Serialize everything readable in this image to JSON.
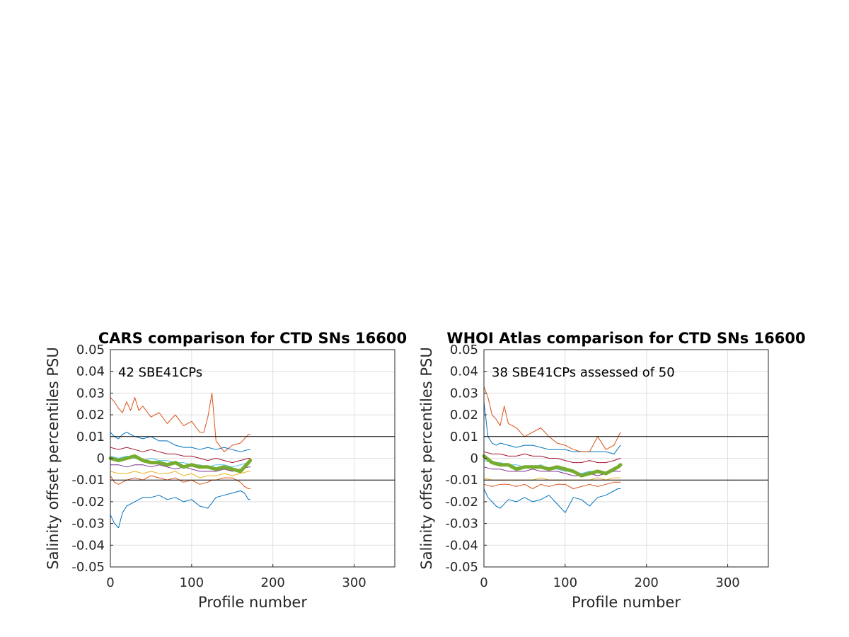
{
  "chart_data": [
    {
      "type": "line",
      "title": "CARS comparison for CTD SNs 16600",
      "xlabel": "Profile number",
      "ylabel": "Salinity offset percentiles PSU",
      "annotation": "42 SBE41CPs",
      "xlim": [
        0,
        350
      ],
      "ylim": [
        -0.05,
        0.05
      ],
      "xticks": [
        "0",
        "100",
        "200",
        "300"
      ],
      "yticks": [
        "0.05",
        "0.04",
        "0.03",
        "0.02",
        "0.01",
        "0",
        "-0.01",
        "-0.02",
        "-0.03",
        "-0.04",
        "-0.05"
      ],
      "grid": true,
      "reference_lines": [
        0.01,
        -0.01
      ],
      "series": [
        {
          "color": "#0072BD",
          "x": [
            0,
            5,
            10,
            15,
            20,
            30,
            40,
            50,
            60,
            70,
            80,
            90,
            100,
            110,
            120,
            130,
            140,
            150,
            160,
            165,
            170,
            172
          ],
          "y": [
            -0.026,
            -0.03,
            -0.032,
            -0.025,
            -0.022,
            -0.02,
            -0.018,
            -0.018,
            -0.017,
            -0.019,
            -0.018,
            -0.02,
            -0.019,
            -0.022,
            -0.023,
            -0.018,
            -0.017,
            -0.016,
            -0.015,
            -0.016,
            -0.019,
            -0.019
          ]
        },
        {
          "color": "#D95319",
          "x": [
            0,
            5,
            10,
            15,
            20,
            30,
            40,
            50,
            60,
            70,
            80,
            90,
            100,
            110,
            120,
            125,
            130,
            140,
            150,
            160,
            165,
            170,
            172
          ],
          "y": [
            -0.008,
            -0.011,
            -0.012,
            -0.011,
            -0.01,
            -0.009,
            -0.01,
            -0.008,
            -0.009,
            -0.01,
            -0.009,
            -0.011,
            -0.01,
            -0.012,
            -0.011,
            -0.01,
            -0.01,
            -0.009,
            -0.009,
            -0.011,
            -0.013,
            -0.014,
            -0.014
          ]
        },
        {
          "color": "#EDB120",
          "x": [
            0,
            10,
            20,
            30,
            40,
            50,
            60,
            70,
            80,
            90,
            100,
            110,
            120,
            130,
            140,
            150,
            160,
            170,
            172
          ],
          "y": [
            -0.006,
            -0.007,
            -0.007,
            -0.006,
            -0.007,
            -0.006,
            -0.007,
            -0.007,
            -0.006,
            -0.008,
            -0.007,
            -0.009,
            -0.008,
            -0.008,
            -0.007,
            -0.008,
            -0.007,
            -0.006,
            -0.006
          ]
        },
        {
          "color": "#7E2F8E",
          "x": [
            0,
            10,
            20,
            30,
            40,
            50,
            60,
            70,
            80,
            90,
            100,
            110,
            120,
            130,
            140,
            150,
            160,
            170,
            172
          ],
          "y": [
            -0.003,
            -0.003,
            -0.004,
            -0.003,
            -0.003,
            -0.004,
            -0.003,
            -0.004,
            -0.005,
            -0.004,
            -0.005,
            -0.006,
            -0.006,
            -0.006,
            -0.005,
            -0.006,
            -0.005,
            -0.004,
            -0.004
          ]
        },
        {
          "color": "#4DBEEE",
          "x": [
            0,
            10,
            20,
            30,
            40,
            50,
            60,
            70,
            80,
            90,
            100,
            110,
            120,
            130,
            140,
            150,
            160,
            170,
            172
          ],
          "y": [
            0.001,
            0.0,
            0.001,
            0.0,
            -0.001,
            0.0,
            -0.001,
            -0.001,
            -0.002,
            -0.002,
            -0.003,
            -0.003,
            -0.004,
            -0.003,
            -0.003,
            -0.004,
            -0.003,
            -0.002,
            -0.002
          ]
        },
        {
          "color": "#A2142F",
          "x": [
            0,
            10,
            20,
            30,
            40,
            50,
            60,
            70,
            80,
            90,
            100,
            110,
            120,
            130,
            140,
            150,
            160,
            170,
            172
          ],
          "y": [
            0.005,
            0.004,
            0.005,
            0.004,
            0.003,
            0.004,
            0.003,
            0.002,
            0.002,
            0.001,
            0.001,
            0.0,
            -0.001,
            0.0,
            -0.001,
            -0.002,
            -0.001,
            0.0,
            0.0
          ]
        },
        {
          "color": "#0072BD",
          "x": [
            0,
            5,
            10,
            15,
            20,
            30,
            40,
            50,
            60,
            70,
            80,
            90,
            100,
            110,
            120,
            130,
            140,
            150,
            160,
            170,
            172
          ],
          "y": [
            0.012,
            0.01,
            0.009,
            0.011,
            0.012,
            0.01,
            0.009,
            0.01,
            0.008,
            0.008,
            0.006,
            0.005,
            0.005,
            0.004,
            0.005,
            0.004,
            0.005,
            0.004,
            0.003,
            0.004,
            0.004
          ]
        },
        {
          "color": "#D95319",
          "x": [
            0,
            5,
            10,
            15,
            20,
            25,
            30,
            35,
            40,
            50,
            60,
            70,
            80,
            90,
            100,
            110,
            115,
            120,
            125,
            130,
            140,
            150,
            160,
            170,
            172
          ],
          "y": [
            0.028,
            0.026,
            0.023,
            0.021,
            0.026,
            0.022,
            0.028,
            0.022,
            0.024,
            0.019,
            0.021,
            0.016,
            0.02,
            0.015,
            0.017,
            0.012,
            0.012,
            0.019,
            0.03,
            0.008,
            0.003,
            0.006,
            0.007,
            0.011,
            0.011
          ]
        },
        {
          "color": "#77AC30",
          "width": 5,
          "x": [
            0,
            10,
            20,
            30,
            40,
            50,
            60,
            70,
            80,
            90,
            100,
            110,
            120,
            130,
            140,
            150,
            160,
            165,
            170,
            172
          ],
          "y": [
            0.0,
            -0.001,
            0.0,
            0.001,
            -0.001,
            -0.002,
            -0.002,
            -0.003,
            -0.002,
            -0.004,
            -0.003,
            -0.004,
            -0.004,
            -0.005,
            -0.004,
            -0.005,
            -0.006,
            -0.004,
            -0.002,
            -0.001
          ]
        }
      ]
    },
    {
      "type": "line",
      "title": "WHOI Atlas comparison for CTD SNs 16600",
      "xlabel": "Profile number",
      "ylabel": "Salinity offset percentiles PSU",
      "annotation": "38 SBE41CPs assessed of 50",
      "xlim": [
        0,
        350
      ],
      "ylim": [
        -0.05,
        0.05
      ],
      "xticks": [
        "0",
        "100",
        "200",
        "300"
      ],
      "yticks": [
        "0.05",
        "0.04",
        "0.03",
        "0.02",
        "0.01",
        "0",
        "-0.01",
        "-0.02",
        "-0.03",
        "-0.04",
        "-0.05"
      ],
      "grid": true,
      "reference_lines": [
        0.01,
        -0.01
      ],
      "series": [
        {
          "color": "#0072BD",
          "x": [
            0,
            5,
            10,
            15,
            20,
            30,
            40,
            50,
            60,
            70,
            80,
            90,
            100,
            110,
            120,
            130,
            140,
            150,
            160,
            165,
            168
          ],
          "y": [
            -0.014,
            -0.018,
            -0.02,
            -0.022,
            -0.023,
            -0.019,
            -0.02,
            -0.018,
            -0.02,
            -0.019,
            -0.017,
            -0.021,
            -0.025,
            -0.018,
            -0.019,
            -0.022,
            -0.018,
            -0.017,
            -0.015,
            -0.014,
            -0.014
          ]
        },
        {
          "color": "#D95319",
          "x": [
            0,
            10,
            20,
            30,
            40,
            50,
            60,
            70,
            80,
            90,
            100,
            110,
            120,
            130,
            140,
            150,
            160,
            168
          ],
          "y": [
            -0.012,
            -0.013,
            -0.012,
            -0.012,
            -0.013,
            -0.012,
            -0.014,
            -0.012,
            -0.013,
            -0.012,
            -0.012,
            -0.014,
            -0.013,
            -0.012,
            -0.013,
            -0.012,
            -0.011,
            -0.011
          ]
        },
        {
          "color": "#EDB120",
          "x": [
            0,
            10,
            20,
            30,
            40,
            50,
            60,
            70,
            80,
            90,
            100,
            110,
            120,
            130,
            140,
            150,
            160,
            168
          ],
          "y": [
            -0.009,
            -0.01,
            -0.01,
            -0.01,
            -0.01,
            -0.01,
            -0.01,
            -0.009,
            -0.01,
            -0.01,
            -0.01,
            -0.01,
            -0.01,
            -0.01,
            -0.009,
            -0.01,
            -0.009,
            -0.009
          ]
        },
        {
          "color": "#7E2F8E",
          "x": [
            0,
            10,
            20,
            30,
            40,
            50,
            60,
            70,
            80,
            90,
            100,
            110,
            120,
            130,
            140,
            150,
            160,
            168
          ],
          "y": [
            -0.004,
            -0.005,
            -0.005,
            -0.006,
            -0.006,
            -0.006,
            -0.005,
            -0.006,
            -0.006,
            -0.006,
            -0.007,
            -0.008,
            -0.008,
            -0.007,
            -0.008,
            -0.007,
            -0.006,
            -0.006
          ]
        },
        {
          "color": "#4DBEEE",
          "x": [
            0,
            10,
            20,
            30,
            40,
            50,
            60,
            70,
            80,
            90,
            100,
            110,
            120,
            130,
            140,
            150,
            160,
            168
          ],
          "y": [
            -0.001,
            -0.002,
            -0.002,
            -0.003,
            -0.003,
            -0.004,
            -0.004,
            -0.003,
            -0.005,
            -0.005,
            -0.006,
            -0.006,
            -0.007,
            -0.006,
            -0.006,
            -0.007,
            -0.005,
            -0.004
          ]
        },
        {
          "color": "#A2142F",
          "x": [
            0,
            10,
            20,
            30,
            40,
            50,
            60,
            70,
            80,
            90,
            100,
            110,
            120,
            130,
            140,
            150,
            160,
            168
          ],
          "y": [
            0.003,
            0.002,
            0.002,
            0.001,
            0.001,
            0.002,
            0.001,
            0.001,
            0.0,
            0.0,
            -0.001,
            -0.002,
            -0.002,
            -0.001,
            -0.002,
            -0.002,
            -0.001,
            0.0
          ]
        },
        {
          "color": "#0072BD",
          "x": [
            0,
            5,
            10,
            15,
            20,
            30,
            40,
            50,
            60,
            70,
            80,
            90,
            100,
            110,
            120,
            130,
            140,
            150,
            160,
            168
          ],
          "y": [
            0.026,
            0.01,
            0.007,
            0.006,
            0.007,
            0.006,
            0.005,
            0.006,
            0.006,
            0.005,
            0.004,
            0.004,
            0.004,
            0.003,
            0.003,
            0.003,
            0.003,
            0.003,
            0.002,
            0.006
          ]
        },
        {
          "color": "#D95319",
          "x": [
            0,
            5,
            10,
            15,
            20,
            25,
            30,
            40,
            50,
            60,
            70,
            80,
            90,
            100,
            110,
            120,
            130,
            140,
            150,
            160,
            168
          ],
          "y": [
            0.033,
            0.028,
            0.02,
            0.018,
            0.015,
            0.024,
            0.016,
            0.014,
            0.01,
            0.012,
            0.014,
            0.01,
            0.007,
            0.006,
            0.004,
            0.003,
            0.003,
            0.01,
            0.004,
            0.006,
            0.012
          ]
        },
        {
          "color": "#77AC30",
          "width": 5,
          "x": [
            0,
            10,
            20,
            30,
            40,
            50,
            60,
            70,
            80,
            90,
            100,
            110,
            120,
            130,
            140,
            150,
            160,
            165,
            168
          ],
          "y": [
            0.001,
            -0.002,
            -0.003,
            -0.003,
            -0.005,
            -0.004,
            -0.004,
            -0.004,
            -0.005,
            -0.004,
            -0.005,
            -0.006,
            -0.008,
            -0.007,
            -0.006,
            -0.007,
            -0.005,
            -0.004,
            -0.003
          ]
        }
      ]
    }
  ]
}
